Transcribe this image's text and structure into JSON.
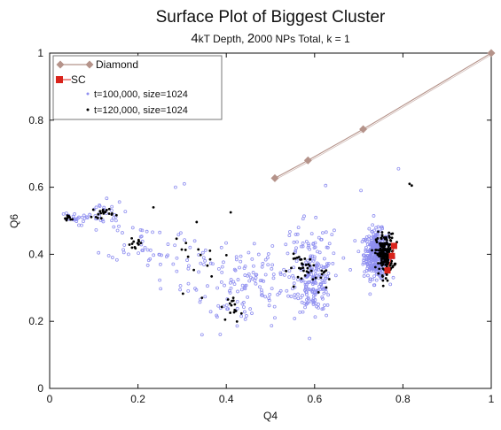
{
  "chart_data": {
    "type": "scatter",
    "title": "Surface Plot of Biggest Cluster",
    "subtitle": {
      "depth_value": "4",
      "depth_unit": "kT Depth,",
      "np_value": "2",
      "np_rest": "000 NPs Total, k = 1"
    },
    "xlabel": "Q4",
    "ylabel": "Q6",
    "xlim": [
      0,
      1
    ],
    "ylim": [
      0,
      1
    ],
    "xticks": [
      "0",
      "0.2",
      "0.4",
      "0.6",
      "0.8",
      "1"
    ],
    "yticks": [
      "0",
      "0.2",
      "0.4",
      "0.6",
      "0.8",
      "1"
    ],
    "legend_position": "top-left",
    "colors": {
      "diamond": "#b5938a",
      "sc": "#d9231b",
      "t100": "#8f8ff0",
      "t120": "#000000"
    },
    "series": [
      {
        "name": "Diamond",
        "type": "line-marker",
        "marker": "diamond",
        "x": [
          0.51,
          0.585,
          0.71,
          1.0
        ],
        "y": [
          0.627,
          0.68,
          0.773,
          1.0
        ]
      },
      {
        "name": "SC",
        "type": "line-marker",
        "marker": "square",
        "x": [
          0.765,
          0.775,
          0.78
        ],
        "y": [
          0.352,
          0.395,
          0.425
        ]
      },
      {
        "name": "t=100,000, size=1024",
        "type": "scatter",
        "marker": "circle",
        "clusters": [
          {
            "x": 0.74,
            "y": 0.4,
            "sx": 0.014,
            "sy": 0.035,
            "n": 380
          },
          {
            "x": 0.6,
            "y": 0.31,
            "sx": 0.02,
            "sy": 0.04,
            "n": 150
          },
          {
            "x": 0.46,
            "y": 0.31,
            "sx": 0.07,
            "sy": 0.055,
            "n": 110
          },
          {
            "x": 0.58,
            "y": 0.42,
            "sx": 0.04,
            "sy": 0.05,
            "n": 60
          },
          {
            "x": 0.21,
            "y": 0.44,
            "sx": 0.04,
            "sy": 0.03,
            "n": 35
          },
          {
            "x": 0.11,
            "y": 0.52,
            "sx": 0.03,
            "sy": 0.02,
            "n": 30
          },
          {
            "x": 0.05,
            "y": 0.505,
            "sx": 0.015,
            "sy": 0.01,
            "n": 22
          },
          {
            "x": 0.3,
            "y": 0.37,
            "sx": 0.04,
            "sy": 0.05,
            "n": 30
          },
          {
            "x": 0.4,
            "y": 0.25,
            "sx": 0.03,
            "sy": 0.04,
            "n": 20
          }
        ],
        "extra": [
          [
            0.305,
            0.61
          ],
          [
            0.285,
            0.6
          ],
          [
            0.79,
            0.655
          ],
          [
            0.625,
            0.605
          ],
          [
            0.345,
            0.16
          ],
          [
            0.705,
            0.59
          ]
        ]
      },
      {
        "name": "t=120,000, size=1024",
        "type": "scatter",
        "marker": "circle",
        "clusters": [
          {
            "x": 0.76,
            "y": 0.4,
            "sx": 0.01,
            "sy": 0.03,
            "n": 200
          },
          {
            "x": 0.58,
            "y": 0.36,
            "sx": 0.02,
            "sy": 0.02,
            "n": 30
          },
          {
            "x": 0.42,
            "y": 0.24,
            "sx": 0.008,
            "sy": 0.02,
            "n": 15
          },
          {
            "x": 0.12,
            "y": 0.525,
            "sx": 0.012,
            "sy": 0.008,
            "n": 20
          },
          {
            "x": 0.19,
            "y": 0.43,
            "sx": 0.01,
            "sy": 0.008,
            "n": 12
          },
          {
            "x": 0.045,
            "y": 0.508,
            "sx": 0.008,
            "sy": 0.004,
            "n": 10
          },
          {
            "x": 0.34,
            "y": 0.4,
            "sx": 0.03,
            "sy": 0.04,
            "n": 15
          },
          {
            "x": 0.62,
            "y": 0.33,
            "sx": 0.01,
            "sy": 0.02,
            "n": 10
          }
        ],
        "extra": [
          [
            0.82,
            0.605
          ],
          [
            0.815,
            0.61
          ],
          [
            0.41,
            0.525
          ],
          [
            0.345,
            0.27
          ],
          [
            0.235,
            0.54
          ]
        ]
      }
    ]
  }
}
